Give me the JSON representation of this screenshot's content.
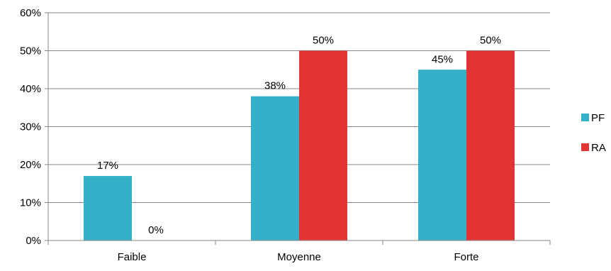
{
  "chart_data": {
    "type": "bar",
    "categories": [
      "Faible",
      "Moyenne",
      "Forte"
    ],
    "series": [
      {
        "name": "PF",
        "values": [
          0.17,
          0.38,
          0.45
        ],
        "labels": [
          "17%",
          "38%",
          "45%"
        ],
        "color": "#35B0C9"
      },
      {
        "name": "RA",
        "values": [
          0.0,
          0.5,
          0.5
        ],
        "labels": [
          "0%",
          "50%",
          "50%"
        ],
        "color": "#E33434"
      }
    ],
    "ylim": [
      0,
      0.6
    ],
    "yticks": [
      0,
      0.1,
      0.2,
      0.3,
      0.4,
      0.5,
      0.6
    ],
    "ytick_labels": [
      "0%",
      "10%",
      "20%",
      "30%",
      "40%",
      "50%",
      "60%"
    ],
    "grid": true,
    "legend_position": "right",
    "title": "",
    "xlabel": "",
    "ylabel": ""
  },
  "colors": {
    "grid": "#878787",
    "axis": "#878787"
  }
}
